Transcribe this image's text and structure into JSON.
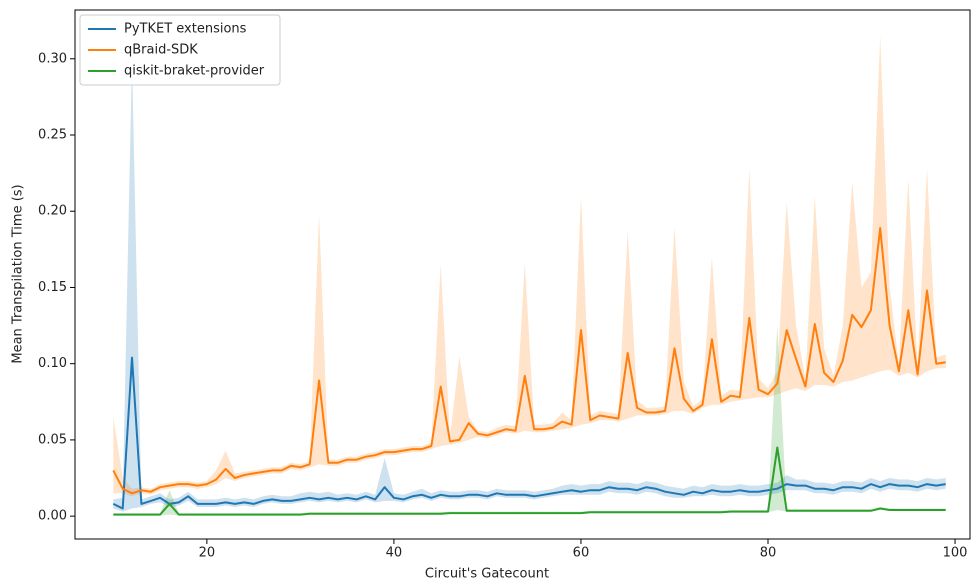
{
  "chart_data": {
    "type": "line",
    "xlabel": "Circuit's Gatecount",
    "ylabel": "Mean Transpilation Time (s)",
    "xlim": [
      5.9,
      101.6
    ],
    "ylim": [
      -0.015,
      0.332
    ],
    "xticks": [
      20,
      40,
      60,
      80,
      100
    ],
    "yticks": [
      {
        "value": 0,
        "label": "0.00"
      },
      {
        "value": 0.05,
        "label": "0.05"
      },
      {
        "value": 0.1,
        "label": "0.10"
      },
      {
        "value": 0.15,
        "label": "0.15"
      },
      {
        "value": 0.2,
        "label": "0.20"
      },
      {
        "value": 0.25,
        "label": "0.25"
      },
      {
        "value": 0.3,
        "label": "0.30"
      }
    ],
    "legend": "upper left",
    "x": [
      10,
      11,
      12,
      13,
      14,
      15,
      16,
      17,
      18,
      19,
      20,
      21,
      22,
      23,
      24,
      25,
      26,
      27,
      28,
      29,
      30,
      31,
      32,
      33,
      34,
      35,
      36,
      37,
      38,
      39,
      40,
      41,
      42,
      43,
      44,
      45,
      46,
      47,
      48,
      49,
      50,
      51,
      52,
      53,
      54,
      55,
      56,
      57,
      58,
      59,
      60,
      61,
      62,
      63,
      64,
      65,
      66,
      67,
      68,
      69,
      70,
      71,
      72,
      73,
      74,
      75,
      76,
      77,
      78,
      79,
      80,
      81,
      82,
      83,
      84,
      85,
      86,
      87,
      88,
      89,
      90,
      91,
      92,
      93,
      94,
      95,
      96,
      97,
      98,
      99
    ],
    "series": [
      {
        "name": "PyTKET extensions",
        "color": "#1f77b4",
        "values": [
          0.008,
          0.005,
          0.104,
          0.008,
          0.01,
          0.012,
          0.008,
          0.009,
          0.013,
          0.008,
          0.008,
          0.008,
          0.009,
          0.008,
          0.009,
          0.008,
          0.01,
          0.011,
          0.01,
          0.01,
          0.011,
          0.012,
          0.011,
          0.012,
          0.011,
          0.012,
          0.011,
          0.013,
          0.011,
          0.019,
          0.012,
          0.011,
          0.013,
          0.014,
          0.012,
          0.014,
          0.013,
          0.013,
          0.014,
          0.014,
          0.013,
          0.015,
          0.014,
          0.014,
          0.014,
          0.013,
          0.014,
          0.015,
          0.016,
          0.017,
          0.016,
          0.017,
          0.017,
          0.019,
          0.018,
          0.018,
          0.017,
          0.019,
          0.018,
          0.016,
          0.015,
          0.014,
          0.016,
          0.015,
          0.017,
          0.016,
          0.016,
          0.017,
          0.016,
          0.016,
          0.017,
          0.018,
          0.021,
          0.02,
          0.02,
          0.018,
          0.018,
          0.017,
          0.019,
          0.019,
          0.018,
          0.021,
          0.019,
          0.021,
          0.02,
          0.02,
          0.019,
          0.021,
          0.02,
          0.021
        ],
        "upper": [
          0.011,
          0.012,
          0.3,
          0.011,
          0.013,
          0.015,
          0.011,
          0.012,
          0.016,
          0.011,
          0.011,
          0.011,
          0.012,
          0.011,
          0.012,
          0.011,
          0.013,
          0.014,
          0.013,
          0.013,
          0.015,
          0.016,
          0.015,
          0.016,
          0.014,
          0.015,
          0.014,
          0.016,
          0.014,
          0.038,
          0.015,
          0.014,
          0.016,
          0.018,
          0.015,
          0.017,
          0.016,
          0.016,
          0.017,
          0.017,
          0.016,
          0.018,
          0.017,
          0.017,
          0.017,
          0.016,
          0.017,
          0.018,
          0.02,
          0.021,
          0.02,
          0.021,
          0.021,
          0.023,
          0.022,
          0.022,
          0.021,
          0.023,
          0.022,
          0.02,
          0.019,
          0.018,
          0.02,
          0.019,
          0.021,
          0.02,
          0.02,
          0.021,
          0.02,
          0.02,
          0.021,
          0.022,
          0.027,
          0.024,
          0.024,
          0.022,
          0.022,
          0.021,
          0.023,
          0.023,
          0.022,
          0.025,
          0.023,
          0.025,
          0.024,
          0.024,
          0.023,
          0.025,
          0.024,
          0.025
        ],
        "lower": [
          0.005,
          0.003,
          0.005,
          0.006,
          0.008,
          0.009,
          0.006,
          0.007,
          0.01,
          0.006,
          0.006,
          0.006,
          0.007,
          0.006,
          0.007,
          0.006,
          0.008,
          0.009,
          0.008,
          0.008,
          0.009,
          0.01,
          0.009,
          0.01,
          0.009,
          0.01,
          0.009,
          0.011,
          0.009,
          0.01,
          0.01,
          0.009,
          0.011,
          0.012,
          0.01,
          0.012,
          0.011,
          0.011,
          0.012,
          0.012,
          0.011,
          0.013,
          0.012,
          0.012,
          0.012,
          0.011,
          0.012,
          0.013,
          0.014,
          0.014,
          0.014,
          0.014,
          0.014,
          0.016,
          0.015,
          0.015,
          0.014,
          0.016,
          0.015,
          0.013,
          0.012,
          0.012,
          0.013,
          0.013,
          0.014,
          0.013,
          0.013,
          0.014,
          0.013,
          0.013,
          0.014,
          0.015,
          0.017,
          0.017,
          0.017,
          0.015,
          0.015,
          0.014,
          0.016,
          0.016,
          0.015,
          0.018,
          0.016,
          0.018,
          0.017,
          0.017,
          0.016,
          0.018,
          0.017,
          0.018
        ]
      },
      {
        "name": "qBraid-SDK",
        "color": "#ff7f0e",
        "values": [
          0.03,
          0.018,
          0.015,
          0.017,
          0.016,
          0.019,
          0.02,
          0.021,
          0.021,
          0.02,
          0.021,
          0.024,
          0.031,
          0.025,
          0.027,
          0.028,
          0.029,
          0.03,
          0.03,
          0.033,
          0.032,
          0.034,
          0.089,
          0.035,
          0.035,
          0.037,
          0.037,
          0.039,
          0.04,
          0.042,
          0.042,
          0.043,
          0.044,
          0.044,
          0.046,
          0.085,
          0.049,
          0.05,
          0.061,
          0.054,
          0.053,
          0.055,
          0.057,
          0.056,
          0.092,
          0.057,
          0.057,
          0.058,
          0.062,
          0.06,
          0.122,
          0.063,
          0.066,
          0.065,
          0.064,
          0.107,
          0.071,
          0.068,
          0.068,
          0.069,
          0.11,
          0.077,
          0.069,
          0.073,
          0.116,
          0.075,
          0.079,
          0.078,
          0.13,
          0.083,
          0.08,
          0.087,
          0.122,
          0.103,
          0.085,
          0.126,
          0.094,
          0.088,
          0.102,
          0.132,
          0.124,
          0.135,
          0.189,
          0.125,
          0.095,
          0.135,
          0.093,
          0.148,
          0.1,
          0.101
        ],
        "upper": [
          0.065,
          0.025,
          0.018,
          0.019,
          0.018,
          0.021,
          0.022,
          0.023,
          0.023,
          0.022,
          0.023,
          0.03,
          0.043,
          0.028,
          0.029,
          0.03,
          0.031,
          0.032,
          0.032,
          0.035,
          0.034,
          0.036,
          0.198,
          0.037,
          0.037,
          0.039,
          0.039,
          0.041,
          0.042,
          0.044,
          0.044,
          0.045,
          0.046,
          0.046,
          0.048,
          0.165,
          0.052,
          0.105,
          0.065,
          0.056,
          0.055,
          0.058,
          0.06,
          0.059,
          0.166,
          0.06,
          0.06,
          0.061,
          0.068,
          0.063,
          0.21,
          0.066,
          0.069,
          0.068,
          0.067,
          0.187,
          0.076,
          0.071,
          0.071,
          0.072,
          0.19,
          0.088,
          0.072,
          0.077,
          0.17,
          0.079,
          0.083,
          0.082,
          0.228,
          0.09,
          0.084,
          0.095,
          0.206,
          0.125,
          0.09,
          0.21,
          0.11,
          0.092,
          0.125,
          0.219,
          0.15,
          0.16,
          0.315,
          0.15,
          0.1,
          0.221,
          0.098,
          0.228,
          0.104,
          0.106
        ],
        "lower": [
          0.015,
          0.015,
          0.013,
          0.015,
          0.014,
          0.017,
          0.018,
          0.019,
          0.019,
          0.018,
          0.019,
          0.021,
          0.025,
          0.023,
          0.025,
          0.026,
          0.027,
          0.028,
          0.028,
          0.031,
          0.03,
          0.032,
          0.034,
          0.033,
          0.033,
          0.035,
          0.035,
          0.037,
          0.038,
          0.04,
          0.04,
          0.041,
          0.042,
          0.042,
          0.044,
          0.046,
          0.047,
          0.048,
          0.05,
          0.052,
          0.051,
          0.053,
          0.055,
          0.054,
          0.056,
          0.055,
          0.055,
          0.056,
          0.057,
          0.058,
          0.06,
          0.061,
          0.063,
          0.063,
          0.062,
          0.064,
          0.066,
          0.066,
          0.066,
          0.067,
          0.069,
          0.069,
          0.067,
          0.071,
          0.073,
          0.073,
          0.075,
          0.076,
          0.077,
          0.078,
          0.078,
          0.08,
          0.082,
          0.084,
          0.082,
          0.086,
          0.086,
          0.085,
          0.088,
          0.089,
          0.091,
          0.093,
          0.095,
          0.096,
          0.092,
          0.094,
          0.091,
          0.095,
          0.097,
          0.097
        ]
      },
      {
        "name": "qiskit-braket-provider",
        "color": "#2ca02c",
        "values": [
          0.001,
          0.001,
          0.001,
          0.001,
          0.001,
          0.001,
          0.008,
          0.001,
          0.001,
          0.001,
          0.001,
          0.001,
          0.001,
          0.001,
          0.001,
          0.001,
          0.001,
          0.001,
          0.001,
          0.001,
          0.001,
          0.0015,
          0.0015,
          0.0015,
          0.0015,
          0.0015,
          0.0015,
          0.0015,
          0.0015,
          0.0015,
          0.0015,
          0.0015,
          0.0015,
          0.0015,
          0.0015,
          0.0015,
          0.002,
          0.002,
          0.002,
          0.002,
          0.002,
          0.002,
          0.002,
          0.002,
          0.002,
          0.002,
          0.002,
          0.002,
          0.002,
          0.002,
          0.002,
          0.0025,
          0.0025,
          0.0025,
          0.0025,
          0.0025,
          0.0025,
          0.0025,
          0.0025,
          0.0025,
          0.0025,
          0.0025,
          0.0025,
          0.0025,
          0.0025,
          0.0025,
          0.003,
          0.003,
          0.003,
          0.003,
          0.003,
          0.045,
          0.0035,
          0.0035,
          0.0035,
          0.0035,
          0.0035,
          0.0035,
          0.0035,
          0.0035,
          0.0035,
          0.0035,
          0.005,
          0.004,
          0.004,
          0.004,
          0.004,
          0.004,
          0.004,
          0.004
        ],
        "upper": [
          0.002,
          0.002,
          0.002,
          0.002,
          0.002,
          0.002,
          0.017,
          0.002,
          0.002,
          0.002,
          0.002,
          0.002,
          0.002,
          0.002,
          0.002,
          0.002,
          0.002,
          0.002,
          0.002,
          0.002,
          0.002,
          0.0025,
          0.0025,
          0.0025,
          0.0025,
          0.0025,
          0.0025,
          0.0025,
          0.0025,
          0.0025,
          0.0025,
          0.0025,
          0.0025,
          0.0025,
          0.0025,
          0.0025,
          0.003,
          0.003,
          0.003,
          0.003,
          0.003,
          0.003,
          0.003,
          0.003,
          0.003,
          0.003,
          0.003,
          0.003,
          0.003,
          0.003,
          0.003,
          0.0035,
          0.0035,
          0.0035,
          0.0035,
          0.0035,
          0.0035,
          0.0035,
          0.0035,
          0.0035,
          0.0035,
          0.0035,
          0.0035,
          0.0035,
          0.0035,
          0.0035,
          0.004,
          0.004,
          0.004,
          0.004,
          0.004,
          0.125,
          0.0045,
          0.0045,
          0.0045,
          0.0045,
          0.0045,
          0.0045,
          0.0045,
          0.0045,
          0.0045,
          0.0045,
          0.006,
          0.005,
          0.005,
          0.005,
          0.005,
          0.005,
          0.005,
          0.005
        ],
        "lower": [
          0.0005,
          0.0005,
          0.0005,
          0.0005,
          0.0005,
          0.0005,
          0.001,
          0.0005,
          0.0005,
          0.0005,
          0.0005,
          0.0005,
          0.0005,
          0.0005,
          0.0005,
          0.0005,
          0.0005,
          0.0005,
          0.0005,
          0.0005,
          0.0005,
          0.001,
          0.001,
          0.001,
          0.001,
          0.001,
          0.001,
          0.001,
          0.001,
          0.001,
          0.001,
          0.001,
          0.001,
          0.001,
          0.001,
          0.001,
          0.0015,
          0.0015,
          0.0015,
          0.0015,
          0.0015,
          0.0015,
          0.0015,
          0.0015,
          0.0015,
          0.0015,
          0.0015,
          0.0015,
          0.0015,
          0.0015,
          0.0015,
          0.002,
          0.002,
          0.002,
          0.002,
          0.002,
          0.002,
          0.002,
          0.002,
          0.002,
          0.002,
          0.002,
          0.002,
          0.002,
          0.002,
          0.002,
          0.0025,
          0.0025,
          0.0025,
          0.0025,
          0.0025,
          0.004,
          0.003,
          0.003,
          0.003,
          0.003,
          0.003,
          0.003,
          0.003,
          0.003,
          0.003,
          0.003,
          0.0045,
          0.0035,
          0.0035,
          0.0035,
          0.0035,
          0.0035,
          0.0035,
          0.0035
        ]
      }
    ]
  }
}
